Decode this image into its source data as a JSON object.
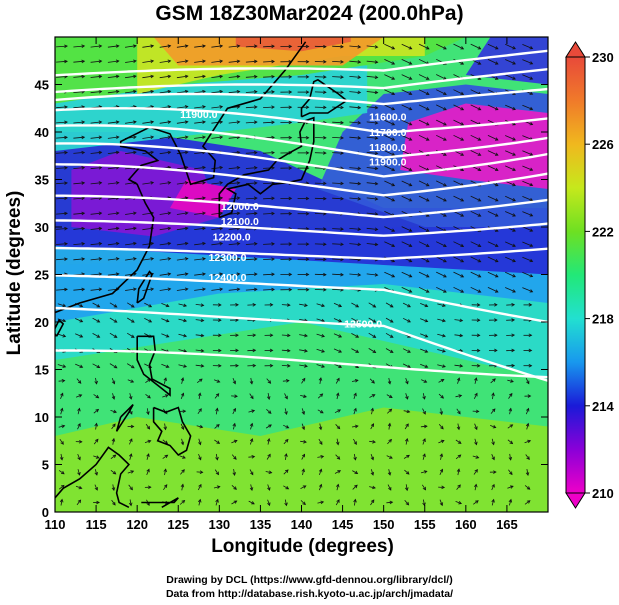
{
  "title": "GSM 18Z30Mar2024 (200.0hPa)",
  "xlabel": "Longitude (degrees)",
  "ylabel": "Latitude  (degrees)",
  "credits": [
    "Drawing by DCL (https://www.gfd-dennou.org/library/dcl/)",
    "Data from http://database.rish.kyoto-u.ac.jp/arch/jmadata/"
  ],
  "map": {
    "lon_range": [
      110,
      170
    ],
    "lat_range": [
      0,
      50
    ],
    "lon_ticks": [
      110,
      115,
      120,
      125,
      130,
      135,
      140,
      145,
      150,
      155,
      160,
      165
    ],
    "lat_ticks": [
      0,
      5,
      10,
      15,
      20,
      25,
      30,
      35,
      40,
      45
    ]
  },
  "colorbar": {
    "min": 210,
    "max": 230,
    "tick_values": [
      210,
      214,
      218,
      222,
      226,
      230
    ],
    "colors": [
      "#ee00c8",
      "#8a00d8",
      "#1a1ad8",
      "#1898ee",
      "#22e0d0",
      "#22e878",
      "#6ee022",
      "#c6e81c",
      "#f0b81e",
      "#f07a2a",
      "#e84a3a"
    ]
  },
  "contours": {
    "interval": 100,
    "labels": [
      {
        "text": "11900.0",
        "lon": 127.5,
        "lat": 41.5
      },
      {
        "text": "11900.0",
        "lon": 150.5,
        "lat": 36.5
      },
      {
        "text": "11800.0",
        "lon": 150.5,
        "lat": 38.0
      },
      {
        "text": "11700.0",
        "lon": 150.5,
        "lat": 39.6
      },
      {
        "text": "11600.0",
        "lon": 150.5,
        "lat": 41.2
      },
      {
        "text": "12000.0",
        "lon": 132.5,
        "lat": 31.8
      },
      {
        "text": "12100.0",
        "lon": 132.5,
        "lat": 30.2
      },
      {
        "text": "12200.0",
        "lon": 131.5,
        "lat": 28.6
      },
      {
        "text": "12300.0",
        "lon": 131.0,
        "lat": 26.4
      },
      {
        "text": "12400.0",
        "lon": 131.0,
        "lat": 24.3
      },
      {
        "text": "12500.0",
        "lon": 147.5,
        "lat": 19.4
      }
    ]
  }
}
